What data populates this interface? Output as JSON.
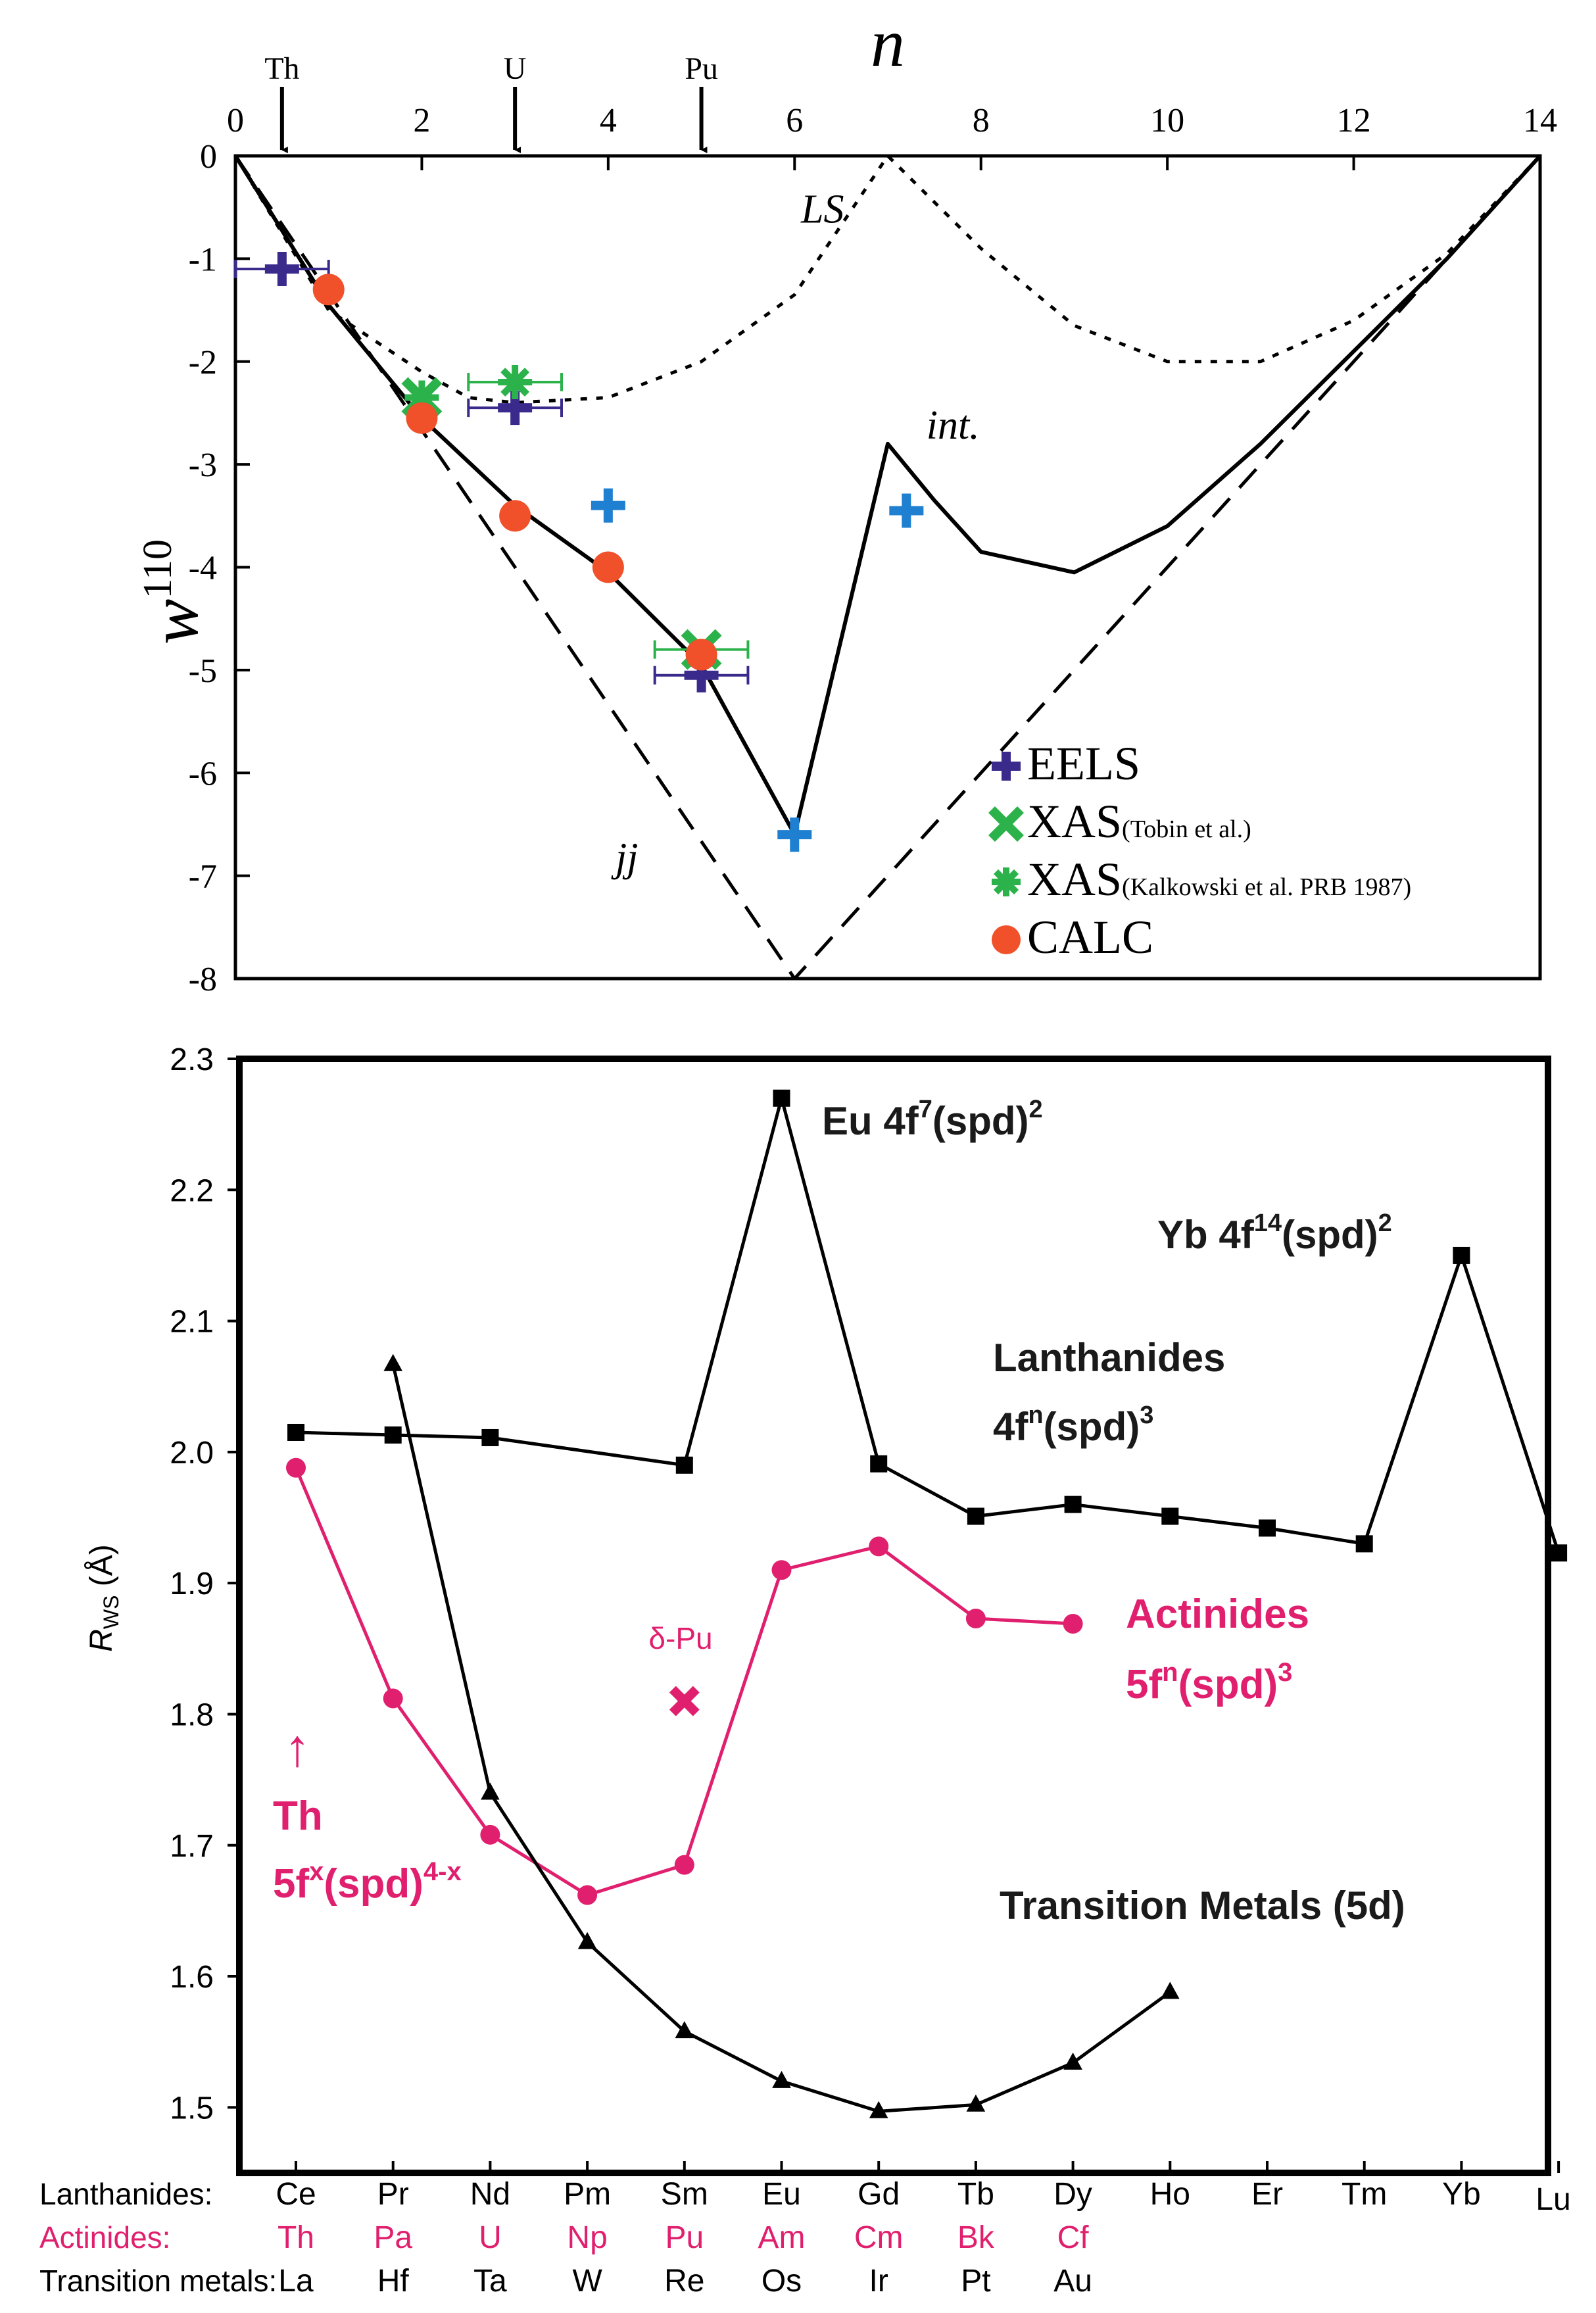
{
  "chart_data": [
    {
      "type": "line",
      "title": "",
      "xlabel": "n",
      "ylabel": "w",
      "ylabel_sup": "110",
      "xlim": [
        0,
        14
      ],
      "ylim": [
        -8,
        0
      ],
      "xticks": [
        "0",
        "2",
        "4",
        "6",
        "8",
        "10",
        "12",
        "14"
      ],
      "xtick_values": [
        0,
        2,
        4,
        6,
        8,
        10,
        12,
        14
      ],
      "yticks": [
        "0",
        "-1",
        "-2",
        "-3",
        "-4",
        "-5",
        "-6",
        "-7",
        "-8"
      ],
      "ytick_values": [
        0,
        -1,
        -2,
        -3,
        -4,
        -5,
        -6,
        -7,
        -8
      ],
      "element_markers": [
        {
          "label": "Th",
          "x": 0.5
        },
        {
          "label": "U",
          "x": 3
        },
        {
          "label": "Pu",
          "x": 5
        }
      ],
      "curves": [
        {
          "name": "LS",
          "label": "LS",
          "style": "dotted",
          "x": [
            0,
            1,
            2,
            2.5,
            3,
            4,
            5,
            6,
            7,
            8,
            9,
            10,
            11,
            12,
            13,
            14
          ],
          "y": [
            0,
            -1.5,
            -2.1,
            -2.35,
            -2.4,
            -2.35,
            -2.0,
            -1.35,
            0,
            -0.9,
            -1.65,
            -2.0,
            -2.0,
            -1.6,
            -0.95,
            0
          ]
        },
        {
          "name": "intermediate",
          "label": "int.",
          "style": "solid",
          "x": [
            0,
            1,
            2,
            3,
            4,
            5,
            6,
            7,
            7.5,
            8,
            9,
            10,
            11,
            12,
            13,
            14
          ],
          "y": [
            0,
            -1.45,
            -2.55,
            -3.4,
            -4.05,
            -4.95,
            -6.6,
            -2.8,
            -3.35,
            -3.85,
            -4.05,
            -3.6,
            -2.8,
            -1.9,
            -1.0,
            0
          ]
        },
        {
          "name": "jj",
          "label": "jj",
          "style": "dashed",
          "x": [
            0,
            6,
            14
          ],
          "y": [
            0,
            -8,
            0
          ]
        }
      ],
      "series": [
        {
          "name": "EELS",
          "marker": "plus",
          "color": "#3a2a8c",
          "points": [
            {
              "x": 0.5,
              "y": -1.1,
              "xerr": 0.5
            },
            {
              "x": 3,
              "y": -2.45,
              "xerr": 0.5
            },
            {
              "x": 5,
              "y": -5.05,
              "xerr": 0.5
            }
          ]
        },
        {
          "name": "EELS (light)",
          "marker": "plus",
          "color": "#1f7fd0",
          "points": [
            {
              "x": 4,
              "y": -3.4
            },
            {
              "x": 7.2,
              "y": -3.45
            },
            {
              "x": 6,
              "y": -6.6
            }
          ]
        },
        {
          "name": "XAS (Tobin et al.)",
          "marker": "x",
          "color": "#2bb24a",
          "points": [
            {
              "x": 2,
              "y": -2.35
            },
            {
              "x": 5,
              "y": -4.8,
              "xerr": 0.5
            }
          ]
        },
        {
          "name": "XAS (Kalkowski et al. PRB 1987)",
          "marker": "asterisk",
          "color": "#2bb24a",
          "points": [
            {
              "x": 2,
              "y": -2.35
            },
            {
              "x": 3,
              "y": -2.2,
              "xerr": 0.5
            }
          ]
        },
        {
          "name": "CALC",
          "marker": "circle",
          "color": "#f0502a",
          "points": [
            {
              "x": 1,
              "y": -1.3
            },
            {
              "x": 2,
              "y": -2.55
            },
            {
              "x": 3,
              "y": -3.5
            },
            {
              "x": 4,
              "y": -4.0
            },
            {
              "x": 5,
              "y": -4.85
            }
          ]
        }
      ],
      "legend": [
        {
          "label": "EELS",
          "marker": "plus",
          "color": "#3a2a8c"
        },
        {
          "label": "XAS",
          "sub": "(Tobin et al.)",
          "marker": "x",
          "color": "#2bb24a"
        },
        {
          "label": "XAS",
          "sub": "(Kalkowski et al. PRB 1987)",
          "marker": "asterisk",
          "color": "#2bb24a"
        },
        {
          "label": "CALC",
          "marker": "circle",
          "color": "#f0502a"
        }
      ]
    },
    {
      "type": "line",
      "title": "",
      "xlabel": "",
      "ylabel": "R",
      "ylabel_sub": "WS",
      "ylabel_unit": " (Å)",
      "ylim": [
        1.45,
        2.3
      ],
      "yticks": [
        "1.5",
        "1.6",
        "1.7",
        "1.8",
        "1.9",
        "2.0",
        "2.1",
        "2.2",
        "2.3"
      ],
      "ytick_values": [
        1.5,
        1.6,
        1.7,
        1.8,
        1.9,
        2.0,
        2.1,
        2.2,
        2.3
      ],
      "category_rows": [
        {
          "name": "Lanthanides:",
          "color": "#000000",
          "labels": [
            "Ce",
            "Pr",
            "Nd",
            "Pm",
            "Sm",
            "Eu",
            "Gd",
            "Tb",
            "Dy",
            "Ho",
            "Er",
            "Tm",
            "Yb",
            "Lu"
          ]
        },
        {
          "name": "Actinides:",
          "color": "#e0206e",
          "labels": [
            "Th",
            "Pa",
            "U",
            "Np",
            "Pu",
            "Am",
            "Cm",
            "Bk",
            "Cf"
          ]
        },
        {
          "name": "Transition metals:",
          "color": "#000000",
          "labels": [
            "La",
            "Hf",
            "Ta",
            "W",
            "Re",
            "Os",
            "Ir",
            "Pt",
            "Au"
          ]
        }
      ],
      "series": [
        {
          "name": "Lanthanides",
          "marker": "square",
          "color": "#000000",
          "x": [
            0,
            1,
            2,
            4,
            5,
            6,
            7,
            8,
            9,
            10,
            11,
            12,
            13
          ],
          "y": [
            2.015,
            2.013,
            2.011,
            1.99,
            2.27,
            1.991,
            1.951,
            1.96,
            1.951,
            1.942,
            1.93,
            2.15,
            1.923
          ]
        },
        {
          "name": "Actinides",
          "marker": "circle",
          "color": "#e0206e",
          "x": [
            0,
            1,
            2,
            3,
            4,
            5,
            6,
            7,
            8
          ],
          "y": [
            1.988,
            1.812,
            1.708,
            1.662,
            1.685,
            1.91,
            1.928,
            1.873,
            1.869
          ]
        },
        {
          "name": "Transition Metals (5d)",
          "marker": "triangle",
          "color": "#000000",
          "x": [
            1,
            2,
            3,
            4,
            5,
            6,
            7,
            8,
            9
          ],
          "y": [
            2.067,
            1.74,
            1.626,
            1.558,
            1.52,
            1.497,
            1.502,
            1.534,
            1.588
          ]
        }
      ],
      "extra_points": [
        {
          "label": "δ-Pu",
          "x": 4,
          "y": 1.81,
          "marker": "x",
          "color": "#e0206e"
        }
      ],
      "annotations": {
        "eu": {
          "main": "Eu 4f",
          "sup1": "7",
          "mid": "(spd)",
          "sup2": "2"
        },
        "yb": {
          "main": "Yb 4f",
          "sup1": "14",
          "mid": "(spd)",
          "sup2": "2"
        },
        "lan_line1": "Lanthanides",
        "lan_line2": {
          "main": "4f",
          "sup1": "n",
          "mid": "(spd)",
          "sup2": "3"
        },
        "act_line1": "Actinides",
        "act_line2": {
          "main": "5f",
          "sup1": "n",
          "mid": "(spd)",
          "sup2": "3"
        },
        "th_arrow": "↑",
        "th_line1": "Th",
        "th_line2": {
          "main": "5f",
          "sup1": "x",
          "mid": "(spd)",
          "sup2": "4-x"
        },
        "tm": "Transition Metals (5d)",
        "delta_pu": "δ-Pu"
      }
    }
  ]
}
